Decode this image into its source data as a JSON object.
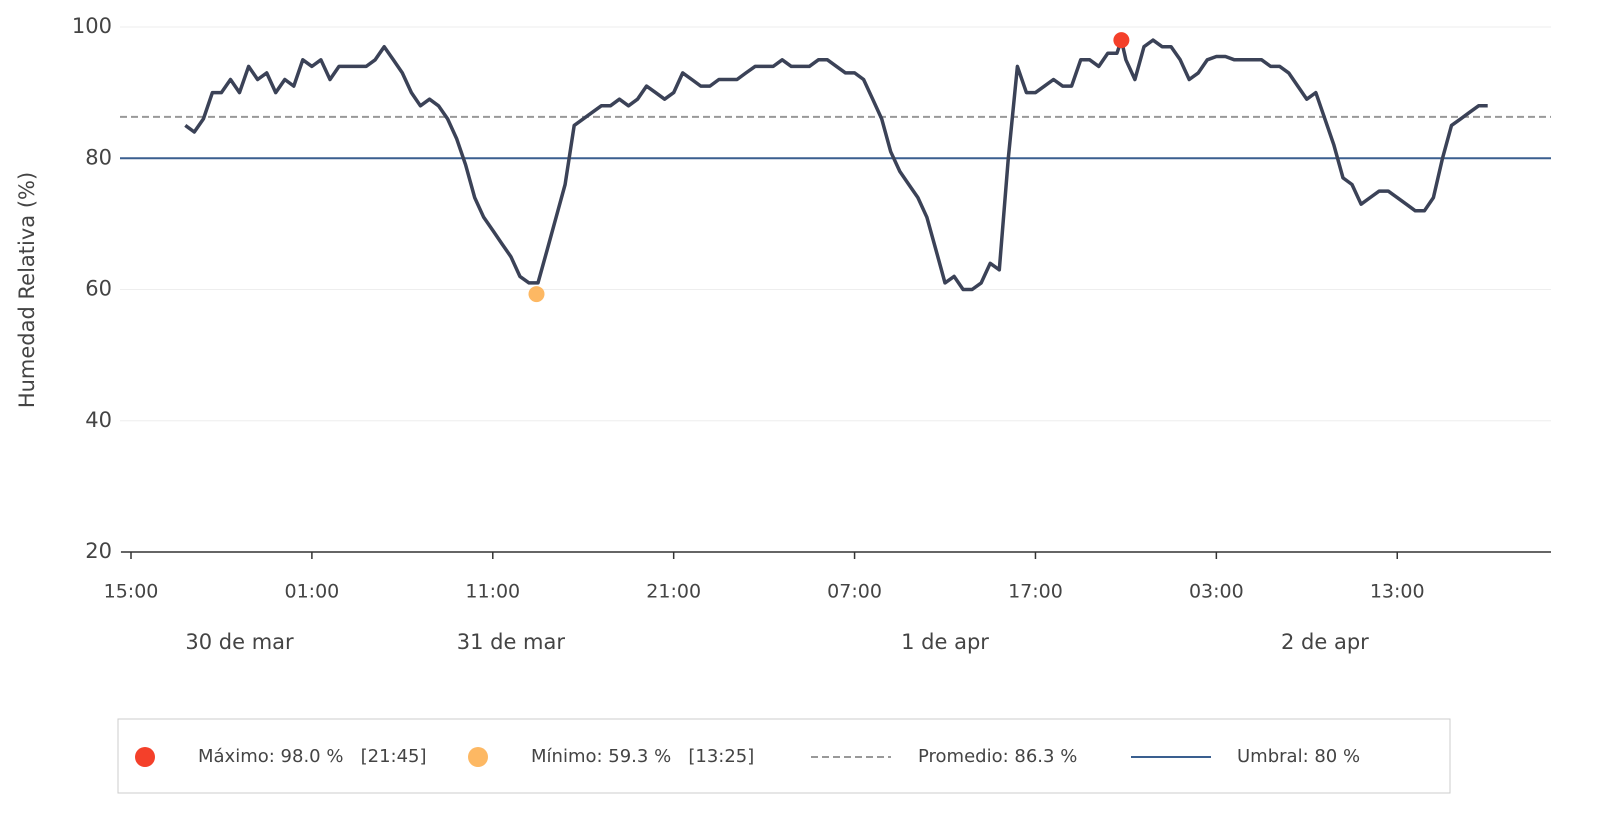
{
  "chart_data": {
    "type": "line",
    "y_label": "Humedad Relativa (%)",
    "color": "#3b4257",
    "x": [
      "03-30T18:00",
      "03-30T18:30",
      "03-30T19:00",
      "03-30T19:30",
      "03-30T20:00",
      "03-30T20:30",
      "03-30T21:00",
      "03-30T21:30",
      "03-30T22:00",
      "03-30T22:30",
      "03-30T23:00",
      "03-30T23:30",
      "03-31T00:00",
      "03-31T00:30",
      "03-31T01:00",
      "03-31T01:30",
      "03-31T02:00",
      "03-31T02:30",
      "03-31T03:00",
      "03-31T03:30",
      "03-31T04:00",
      "03-31T04:30",
      "03-31T05:00",
      "03-31T05:30",
      "03-31T06:00",
      "03-31T06:30",
      "03-31T07:00",
      "03-31T07:30",
      "03-31T08:00",
      "03-31T08:30",
      "03-31T09:00",
      "03-31T09:30",
      "03-31T10:00",
      "03-31T10:30",
      "03-31T11:00",
      "03-31T11:30",
      "03-31T12:00",
      "03-31T12:30",
      "03-31T13:00",
      "03-31T13:30",
      "03-31T14:00",
      "03-31T14:30",
      "03-31T15:00",
      "03-31T15:30",
      "03-31T16:00",
      "03-31T16:30",
      "03-31T17:00",
      "03-31T17:30",
      "03-31T18:00",
      "03-31T18:30",
      "03-31T19:00",
      "03-31T19:30",
      "03-31T20:00",
      "03-31T20:30",
      "03-31T21:00",
      "03-31T21:30",
      "03-31T22:00",
      "03-31T22:30",
      "03-31T23:00",
      "03-31T23:30",
      "04-01T00:00",
      "04-01T00:30",
      "04-01T01:00",
      "04-01T01:30",
      "04-01T02:00",
      "04-01T02:30",
      "04-01T03:00",
      "04-01T03:30",
      "04-01T04:00",
      "04-01T04:30",
      "04-01T05:00",
      "04-01T05:30",
      "04-01T06:00",
      "04-01T06:30",
      "04-01T07:00",
      "04-01T07:30",
      "04-01T08:00",
      "04-01T08:30",
      "04-01T09:00",
      "04-01T09:30",
      "04-01T10:00",
      "04-01T10:30",
      "04-01T11:00",
      "04-01T11:30",
      "04-01T12:00",
      "04-01T12:30",
      "04-01T13:00",
      "04-01T13:30",
      "04-01T14:00",
      "04-01T14:30",
      "04-01T15:00",
      "04-01T15:30",
      "04-01T16:00",
      "04-01T16:30",
      "04-01T17:00",
      "04-01T17:30",
      "04-01T18:00",
      "04-01T18:30",
      "04-01T19:00",
      "04-01T19:30",
      "04-01T20:00",
      "04-01T20:30",
      "04-01T21:00",
      "04-01T21:30",
      "04-01T21:45",
      "04-01T22:00",
      "04-01T22:30",
      "04-01T23:00",
      "04-01T23:30",
      "04-02T00:00",
      "04-02T00:30",
      "04-02T01:00",
      "04-02T01:30",
      "04-02T02:00",
      "04-02T02:30",
      "04-02T03:00",
      "04-02T03:30",
      "04-02T04:00",
      "04-02T04:30",
      "04-02T05:00",
      "04-02T05:30",
      "04-02T06:00",
      "04-02T06:30",
      "04-02T07:00",
      "04-02T07:30",
      "04-02T08:00",
      "04-02T08:30",
      "04-02T09:00",
      "04-02T09:30",
      "04-02T10:00",
      "04-02T10:30",
      "04-02T11:00",
      "04-02T11:30",
      "04-02T12:00",
      "04-02T12:30",
      "04-02T13:00",
      "04-02T13:30",
      "04-02T14:00",
      "04-02T14:30",
      "04-02T15:00",
      "04-02T15:30",
      "04-02T16:00",
      "04-02T16:30",
      "04-02T17:00",
      "04-02T17:30",
      "04-02T18:00"
    ],
    "values": [
      85,
      84,
      86,
      90,
      90,
      92,
      90,
      94,
      92,
      93,
      90,
      92,
      91,
      95,
      94,
      95,
      92,
      94,
      94,
      94,
      94,
      95,
      97,
      95,
      93,
      90,
      88,
      89,
      88,
      86,
      83,
      79,
      74,
      71,
      69,
      67,
      65,
      62,
      61,
      61,
      66,
      71,
      76,
      85,
      86,
      87,
      88,
      88,
      89,
      88,
      89,
      91,
      90,
      89,
      90,
      93,
      92,
      91,
      91,
      92,
      92,
      92,
      93,
      94,
      94,
      94,
      95,
      94,
      94,
      94,
      95,
      95,
      94,
      93,
      93,
      92,
      89,
      86,
      81,
      78,
      76,
      74,
      71,
      66,
      61,
      62,
      60,
      60,
      61,
      64,
      63,
      80,
      94,
      90,
      90,
      91,
      92,
      91,
      91,
      95,
      95,
      94,
      96,
      96,
      98,
      95,
      92,
      97,
      98,
      97,
      97,
      95,
      92,
      93,
      95,
      95.5,
      95.5,
      95,
      95,
      95,
      95,
      94,
      94,
      93,
      91,
      89,
      90,
      86,
      82,
      77,
      76,
      73,
      74,
      75,
      75,
      74,
      73,
      72,
      72,
      74,
      80,
      85,
      86,
      87,
      88,
      88
    ],
    "xlim": [
      "03-30T15:00",
      "04-02T21:30"
    ],
    "xticks": [
      {
        "value": "03-30T15:00",
        "label": "15:00"
      },
      {
        "value": "03-31T01:00",
        "label": "01:00"
      },
      {
        "value": "03-31T11:00",
        "label": "11:00"
      },
      {
        "value": "03-31T21:00",
        "label": "21:00"
      },
      {
        "value": "04-01T07:00",
        "label": "07:00"
      },
      {
        "value": "04-01T17:00",
        "label": "17:00"
      },
      {
        "value": "04-02T03:00",
        "label": "03:00"
      },
      {
        "value": "04-02T13:00",
        "label": "13:00"
      }
    ],
    "date_labels": [
      {
        "value": "03-30T21:00",
        "label": "30 de mar"
      },
      {
        "value": "03-31T12:00",
        "label": "31 de mar"
      },
      {
        "value": "04-01T12:00",
        "label": "1 de apr"
      },
      {
        "value": "04-02T09:00",
        "label": "2 de apr"
      }
    ],
    "ylim": [
      20,
      100
    ],
    "yticks": [
      20,
      40,
      60,
      80,
      100
    ],
    "grid": true,
    "max": {
      "x": "04-01T21:45",
      "value": 98.0,
      "label": "Máximo: 98.0 %   [21:45]",
      "color": "#f4402a"
    },
    "min": {
      "x": "03-31T13:25",
      "value": 59.3,
      "label": "Mínimo: 59.3 %   [13:25]",
      "color": "#fdb863"
    },
    "average": {
      "value": 86.3,
      "label": "Promedio: 86.3 %",
      "color": "#999999"
    },
    "threshold": {
      "value": 80,
      "label": "Umbral: 80 %",
      "color": "#3a5f8f"
    },
    "legend": "bottom"
  }
}
